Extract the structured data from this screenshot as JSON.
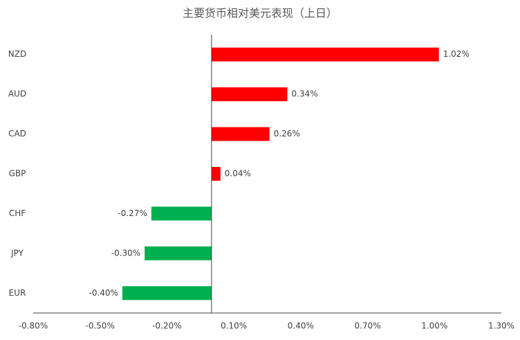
{
  "chart_data": {
    "type": "hbar",
    "title": "主要货币相对美元表现（上日）",
    "categories": [
      "NZD",
      "AUD",
      "CAD",
      "GBP",
      "CHF",
      "JPY",
      "EUR"
    ],
    "values": [
      1.02,
      0.34,
      0.26,
      0.04,
      -0.27,
      -0.3,
      -0.4
    ],
    "value_labels": [
      "1.02%",
      "0.34%",
      "0.26%",
      "0.04%",
      "-0.27%",
      "-0.30%",
      "-0.40%"
    ],
    "positive_color": "#ff0000",
    "negative_color": "#00b050",
    "xlim": [
      -0.8,
      1.3
    ],
    "xticks": [
      {
        "value": -0.8,
        "label": "-0.80%"
      },
      {
        "value": -0.5,
        "label": "-0.50%"
      },
      {
        "value": -0.2,
        "label": "-0.20%"
      },
      {
        "value": 0.1,
        "label": "0.10%"
      },
      {
        "value": 0.4,
        "label": "0.40%"
      },
      {
        "value": 0.7,
        "label": "0.70%"
      },
      {
        "value": 1.0,
        "label": "1.00%"
      },
      {
        "value": 1.3,
        "label": "1.30%"
      }
    ],
    "grid": false
  }
}
